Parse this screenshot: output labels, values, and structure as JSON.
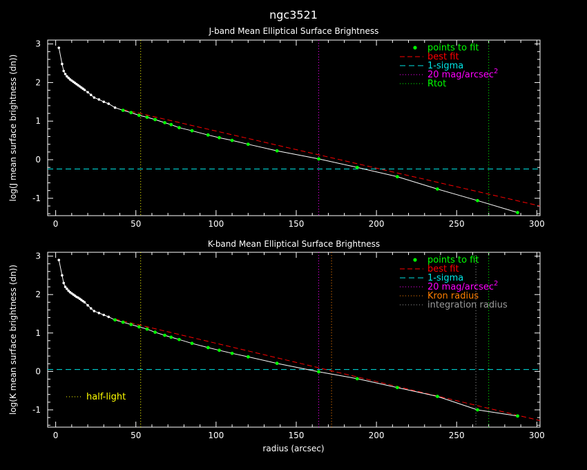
{
  "figure": {
    "title": "ngc3521",
    "xlabel": "radius (arcsec)"
  },
  "colors": {
    "background": "#000000",
    "axes": "#ffffff",
    "points": "#00ff00",
    "best_fit": "#ff0000",
    "sigma": "#00e5e5",
    "mag20": "#ff00ff",
    "rtot": "#00ff00",
    "kron": "#ff7f00",
    "integration": "#9a9a9a",
    "half_light": "#ffff00",
    "profile": "#ffffff"
  },
  "chart_data": [
    {
      "type": "line",
      "title": "J-band Mean Elliptical Surface Brightness",
      "ylabel": "log(J mean surface brightness (dn))",
      "xlim": [
        -5,
        302
      ],
      "ylim": [
        -1.45,
        3.1
      ],
      "xticks": [
        0,
        50,
        100,
        150,
        200,
        250,
        300
      ],
      "yticks": [
        -1,
        0,
        1,
        2,
        3
      ],
      "grid": false,
      "legend_position": "top-right",
      "legend": [
        "points to fit",
        "best fit",
        "1-sigma",
        "20 mag/arcsec",
        "Rtot"
      ],
      "legend_superscript": "2",
      "profile_x": [
        2,
        4,
        5,
        6,
        7,
        8,
        9,
        10,
        11,
        12,
        13,
        14,
        15,
        16,
        17,
        18,
        20,
        22,
        24,
        27,
        30,
        33,
        37,
        42,
        47,
        52,
        57,
        62,
        68,
        72,
        77,
        85,
        95,
        102,
        110,
        120,
        138,
        164,
        188,
        213,
        238,
        263,
        288
      ],
      "profile_y": [
        2.9,
        2.48,
        2.3,
        2.22,
        2.16,
        2.12,
        2.08,
        2.05,
        2.02,
        1.99,
        1.96,
        1.93,
        1.9,
        1.87,
        1.84,
        1.81,
        1.75,
        1.68,
        1.61,
        1.56,
        1.5,
        1.45,
        1.35,
        1.28,
        1.22,
        1.15,
        1.1,
        1.04,
        0.96,
        0.91,
        0.83,
        0.75,
        0.64,
        0.57,
        0.5,
        0.4,
        0.23,
        0.02,
        -0.2,
        -0.44,
        -0.76,
        -1.06,
        -1.37
      ],
      "fit_points_x": [
        42,
        47,
        52,
        57,
        62,
        68,
        72,
        77,
        85,
        95,
        102,
        110,
        120,
        138,
        164,
        188,
        213,
        238,
        263,
        288
      ],
      "fit_points_y": [
        1.28,
        1.22,
        1.15,
        1.1,
        1.04,
        0.96,
        0.91,
        0.83,
        0.75,
        0.64,
        0.57,
        0.5,
        0.4,
        0.23,
        0.02,
        -0.2,
        -0.44,
        -0.76,
        -1.06,
        -1.37
      ],
      "best_fit": {
        "x": [
          42,
          302
        ],
        "y": [
          1.3,
          -1.2
        ]
      },
      "sigma_level": -0.24,
      "mag20_radius": 164,
      "rtot_radius": 270,
      "half_light_radius": 53
    },
    {
      "type": "line",
      "title": "K-band Mean Elliptical Surface Brightness",
      "ylabel": "log(K mean surface brightness (dn))",
      "xlim": [
        -5,
        302
      ],
      "ylim": [
        -1.45,
        3.1
      ],
      "xticks": [
        0,
        50,
        100,
        150,
        200,
        250,
        300
      ],
      "yticks": [
        -1,
        0,
        1,
        2,
        3
      ],
      "grid": false,
      "legend_position": "top-right",
      "legend": [
        "points to fit",
        "best fit",
        "1-sigma",
        "20 mag/arcsec",
        "Kron radius",
        "integration radius"
      ],
      "legend_superscript": "2",
      "annotation": "half-light",
      "profile_x": [
        2,
        4,
        5,
        6,
        7,
        8,
        9,
        10,
        11,
        12,
        13,
        14,
        15,
        16,
        17,
        18,
        20,
        22,
        24,
        27,
        30,
        33,
        37,
        42,
        47,
        52,
        57,
        62,
        68,
        72,
        77,
        85,
        95,
        102,
        110,
        120,
        138,
        164,
        188,
        213,
        238,
        263,
        288
      ],
      "profile_y": [
        2.9,
        2.5,
        2.3,
        2.2,
        2.15,
        2.1,
        2.06,
        2.03,
        2.0,
        1.97,
        1.94,
        1.92,
        1.89,
        1.86,
        1.83,
        1.8,
        1.72,
        1.64,
        1.57,
        1.52,
        1.47,
        1.42,
        1.34,
        1.28,
        1.22,
        1.16,
        1.1,
        1.02,
        0.94,
        0.89,
        0.83,
        0.73,
        0.62,
        0.55,
        0.47,
        0.38,
        0.21,
        -0.01,
        -0.19,
        -0.42,
        -0.65,
        -1.0,
        -1.16
      ],
      "fit_points_x": [
        37,
        42,
        47,
        52,
        57,
        62,
        68,
        72,
        77,
        85,
        95,
        102,
        110,
        120,
        138,
        164,
        188,
        213,
        238,
        263,
        288
      ],
      "fit_points_y": [
        1.34,
        1.28,
        1.22,
        1.16,
        1.1,
        1.02,
        0.94,
        0.89,
        0.83,
        0.73,
        0.62,
        0.55,
        0.47,
        0.38,
        0.21,
        -0.01,
        -0.19,
        -0.42,
        -0.65,
        -1.0,
        -1.16
      ],
      "best_fit": {
        "x": [
          37,
          302
        ],
        "y": [
          1.36,
          -1.28
        ]
      },
      "sigma_level": 0.05,
      "mag20_radius": 164,
      "kron_radius": 172,
      "integration_radius": 262,
      "rtot_radius": 270,
      "half_light_radius": 53
    }
  ]
}
